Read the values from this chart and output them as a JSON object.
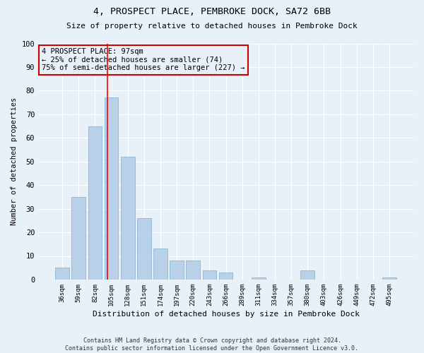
{
  "title": "4, PROSPECT PLACE, PEMBROKE DOCK, SA72 6BB",
  "subtitle": "Size of property relative to detached houses in Pembroke Dock",
  "xlabel": "Distribution of detached houses by size in Pembroke Dock",
  "ylabel": "Number of detached properties",
  "categories": [
    "36sqm",
    "59sqm",
    "82sqm",
    "105sqm",
    "128sqm",
    "151sqm",
    "174sqm",
    "197sqm",
    "220sqm",
    "243sqm",
    "266sqm",
    "289sqm",
    "311sqm",
    "334sqm",
    "357sqm",
    "380sqm",
    "403sqm",
    "426sqm",
    "449sqm",
    "472sqm",
    "495sqm"
  ],
  "values": [
    5,
    35,
    65,
    77,
    52,
    26,
    13,
    8,
    8,
    4,
    3,
    0,
    1,
    0,
    0,
    4,
    0,
    0,
    0,
    0,
    1
  ],
  "bar_color": "#b8d0e8",
  "bar_edge_color": "#7aafd4",
  "bg_color": "#e8f0f8",
  "grid_color": "#ffffff",
  "ylim": [
    0,
    100
  ],
  "yticks": [
    0,
    10,
    20,
    30,
    40,
    50,
    60,
    70,
    80,
    90,
    100
  ],
  "annotation_text": "4 PROSPECT PLACE: 97sqm\n← 25% of detached houses are smaller (74)\n75% of semi-detached houses are larger (227) →",
  "vline_x": 2.75,
  "box_color": "#cc0000",
  "footer": "Contains HM Land Registry data © Crown copyright and database right 2024.\nContains public sector information licensed under the Open Government Licence v3.0."
}
